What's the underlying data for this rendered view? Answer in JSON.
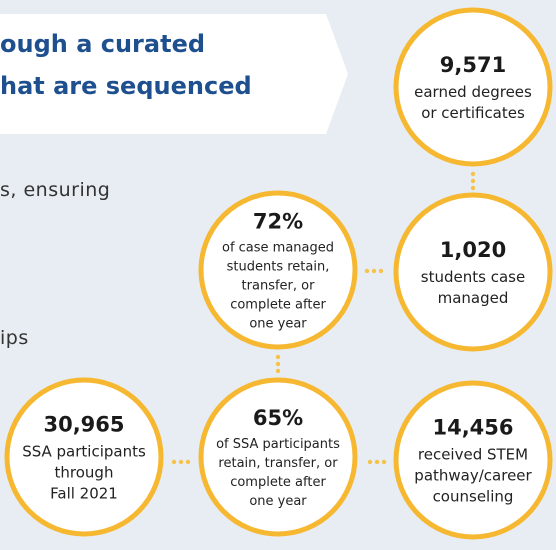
{
  "banner": {
    "lines": [
      "ough a curated",
      "hat are sequenced"
    ]
  },
  "body_text": [
    "s, ensuring",
    "ips"
  ],
  "circles": [
    {
      "value": "9,571",
      "lines": [
        "earned degrees",
        "or certificates"
      ]
    },
    {
      "value": "1,020",
      "lines": [
        "students case",
        "managed"
      ]
    },
    {
      "value": "72%",
      "lines": [
        "of case managed",
        "students retain,",
        "transfer, or",
        "complete after",
        "one year"
      ]
    },
    {
      "value": "30,965",
      "lines": [
        "SSA participants",
        "through",
        "Fall 2021"
      ]
    },
    {
      "value": "65%",
      "lines": [
        "of SSA participants",
        "retain, transfer, or",
        "complete after",
        "one year"
      ]
    },
    {
      "value": "14,456",
      "lines": [
        "received STEM",
        "pathway/career",
        "counseling"
      ]
    }
  ]
}
